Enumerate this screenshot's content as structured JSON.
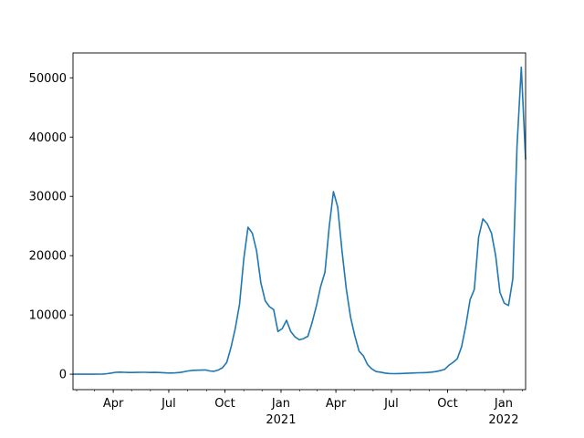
{
  "chart_data": {
    "type": "line",
    "title": "",
    "xlabel": "",
    "ylabel": "",
    "grid": false,
    "line_color": "#1f77b4",
    "ylim": [
      -2600,
      54200
    ],
    "yticks": [
      0,
      10000,
      20000,
      30000,
      40000,
      50000
    ],
    "xticks": [
      {
        "date": "2020-04-01",
        "label": "Apr",
        "year": ""
      },
      {
        "date": "2020-07-01",
        "label": "Jul",
        "year": ""
      },
      {
        "date": "2020-10-01",
        "label": "Oct",
        "year": ""
      },
      {
        "date": "2021-01-01",
        "label": "Jan",
        "year": "2021"
      },
      {
        "date": "2021-04-01",
        "label": "Apr",
        "year": ""
      },
      {
        "date": "2021-07-01",
        "label": "Jul",
        "year": ""
      },
      {
        "date": "2021-10-01",
        "label": "Oct",
        "year": ""
      },
      {
        "date": "2022-01-01",
        "label": "Jan",
        "year": "2022"
      }
    ],
    "x": [
      "2020-01-26",
      "2020-02-02",
      "2020-02-09",
      "2020-02-16",
      "2020-02-23",
      "2020-03-01",
      "2020-03-08",
      "2020-03-15",
      "2020-03-22",
      "2020-03-29",
      "2020-04-05",
      "2020-04-12",
      "2020-04-19",
      "2020-04-26",
      "2020-05-03",
      "2020-05-10",
      "2020-05-17",
      "2020-05-24",
      "2020-05-31",
      "2020-06-07",
      "2020-06-14",
      "2020-06-21",
      "2020-06-28",
      "2020-07-05",
      "2020-07-12",
      "2020-07-19",
      "2020-07-26",
      "2020-08-02",
      "2020-08-09",
      "2020-08-16",
      "2020-08-23",
      "2020-08-30",
      "2020-09-06",
      "2020-09-13",
      "2020-09-20",
      "2020-09-27",
      "2020-10-04",
      "2020-10-11",
      "2020-10-18",
      "2020-10-25",
      "2020-11-01",
      "2020-11-08",
      "2020-11-15",
      "2020-11-22",
      "2020-11-29",
      "2020-12-06",
      "2020-12-13",
      "2020-12-20",
      "2020-12-27",
      "2021-01-03",
      "2021-01-10",
      "2021-01-17",
      "2021-01-24",
      "2021-01-31",
      "2021-02-07",
      "2021-02-14",
      "2021-02-21",
      "2021-02-28",
      "2021-03-07",
      "2021-03-14",
      "2021-03-21",
      "2021-03-28",
      "2021-04-04",
      "2021-04-11",
      "2021-04-18",
      "2021-04-25",
      "2021-05-02",
      "2021-05-09",
      "2021-05-16",
      "2021-05-23",
      "2021-05-30",
      "2021-06-06",
      "2021-06-13",
      "2021-06-20",
      "2021-06-27",
      "2021-07-04",
      "2021-07-11",
      "2021-07-18",
      "2021-07-25",
      "2021-08-01",
      "2021-08-08",
      "2021-08-15",
      "2021-08-22",
      "2021-08-29",
      "2021-09-05",
      "2021-09-12",
      "2021-09-19",
      "2021-09-26",
      "2021-10-03",
      "2021-10-10",
      "2021-10-17",
      "2021-10-24",
      "2021-10-31",
      "2021-11-07",
      "2021-11-14",
      "2021-11-21",
      "2021-11-28",
      "2021-12-05",
      "2021-12-12",
      "2021-12-19",
      "2021-12-26",
      "2022-01-02",
      "2022-01-09",
      "2022-01-16",
      "2022-01-23",
      "2022-01-30",
      "2022-02-06"
    ],
    "values": [
      0,
      0,
      0,
      0,
      0,
      0,
      10,
      30,
      100,
      200,
      320,
      350,
      330,
      300,
      290,
      310,
      330,
      320,
      300,
      310,
      300,
      260,
      220,
      200,
      230,
      300,
      420,
      560,
      650,
      680,
      700,
      720,
      550,
      500,
      700,
      1100,
      2000,
      4500,
      7700,
      11800,
      19500,
      24800,
      23800,
      20800,
      15400,
      12400,
      11400,
      10900,
      7200,
      7700,
      9100,
      7200,
      6300,
      5800,
      6000,
      6400,
      8700,
      11500,
      14800,
      17200,
      24900,
      30800,
      28200,
      20800,
      14400,
      9600,
      6500,
      3900,
      3100,
      1600,
      900,
      450,
      350,
      200,
      130,
      100,
      110,
      130,
      160,
      190,
      220,
      250,
      270,
      300,
      350,
      450,
      600,
      800,
      1500,
      2000,
      2600,
      4600,
      8200,
      12600,
      14300,
      23100,
      26200,
      25400,
      23800,
      20000,
      13800,
      12000,
      11600,
      16100,
      38500,
      51800,
      36200
    ]
  }
}
